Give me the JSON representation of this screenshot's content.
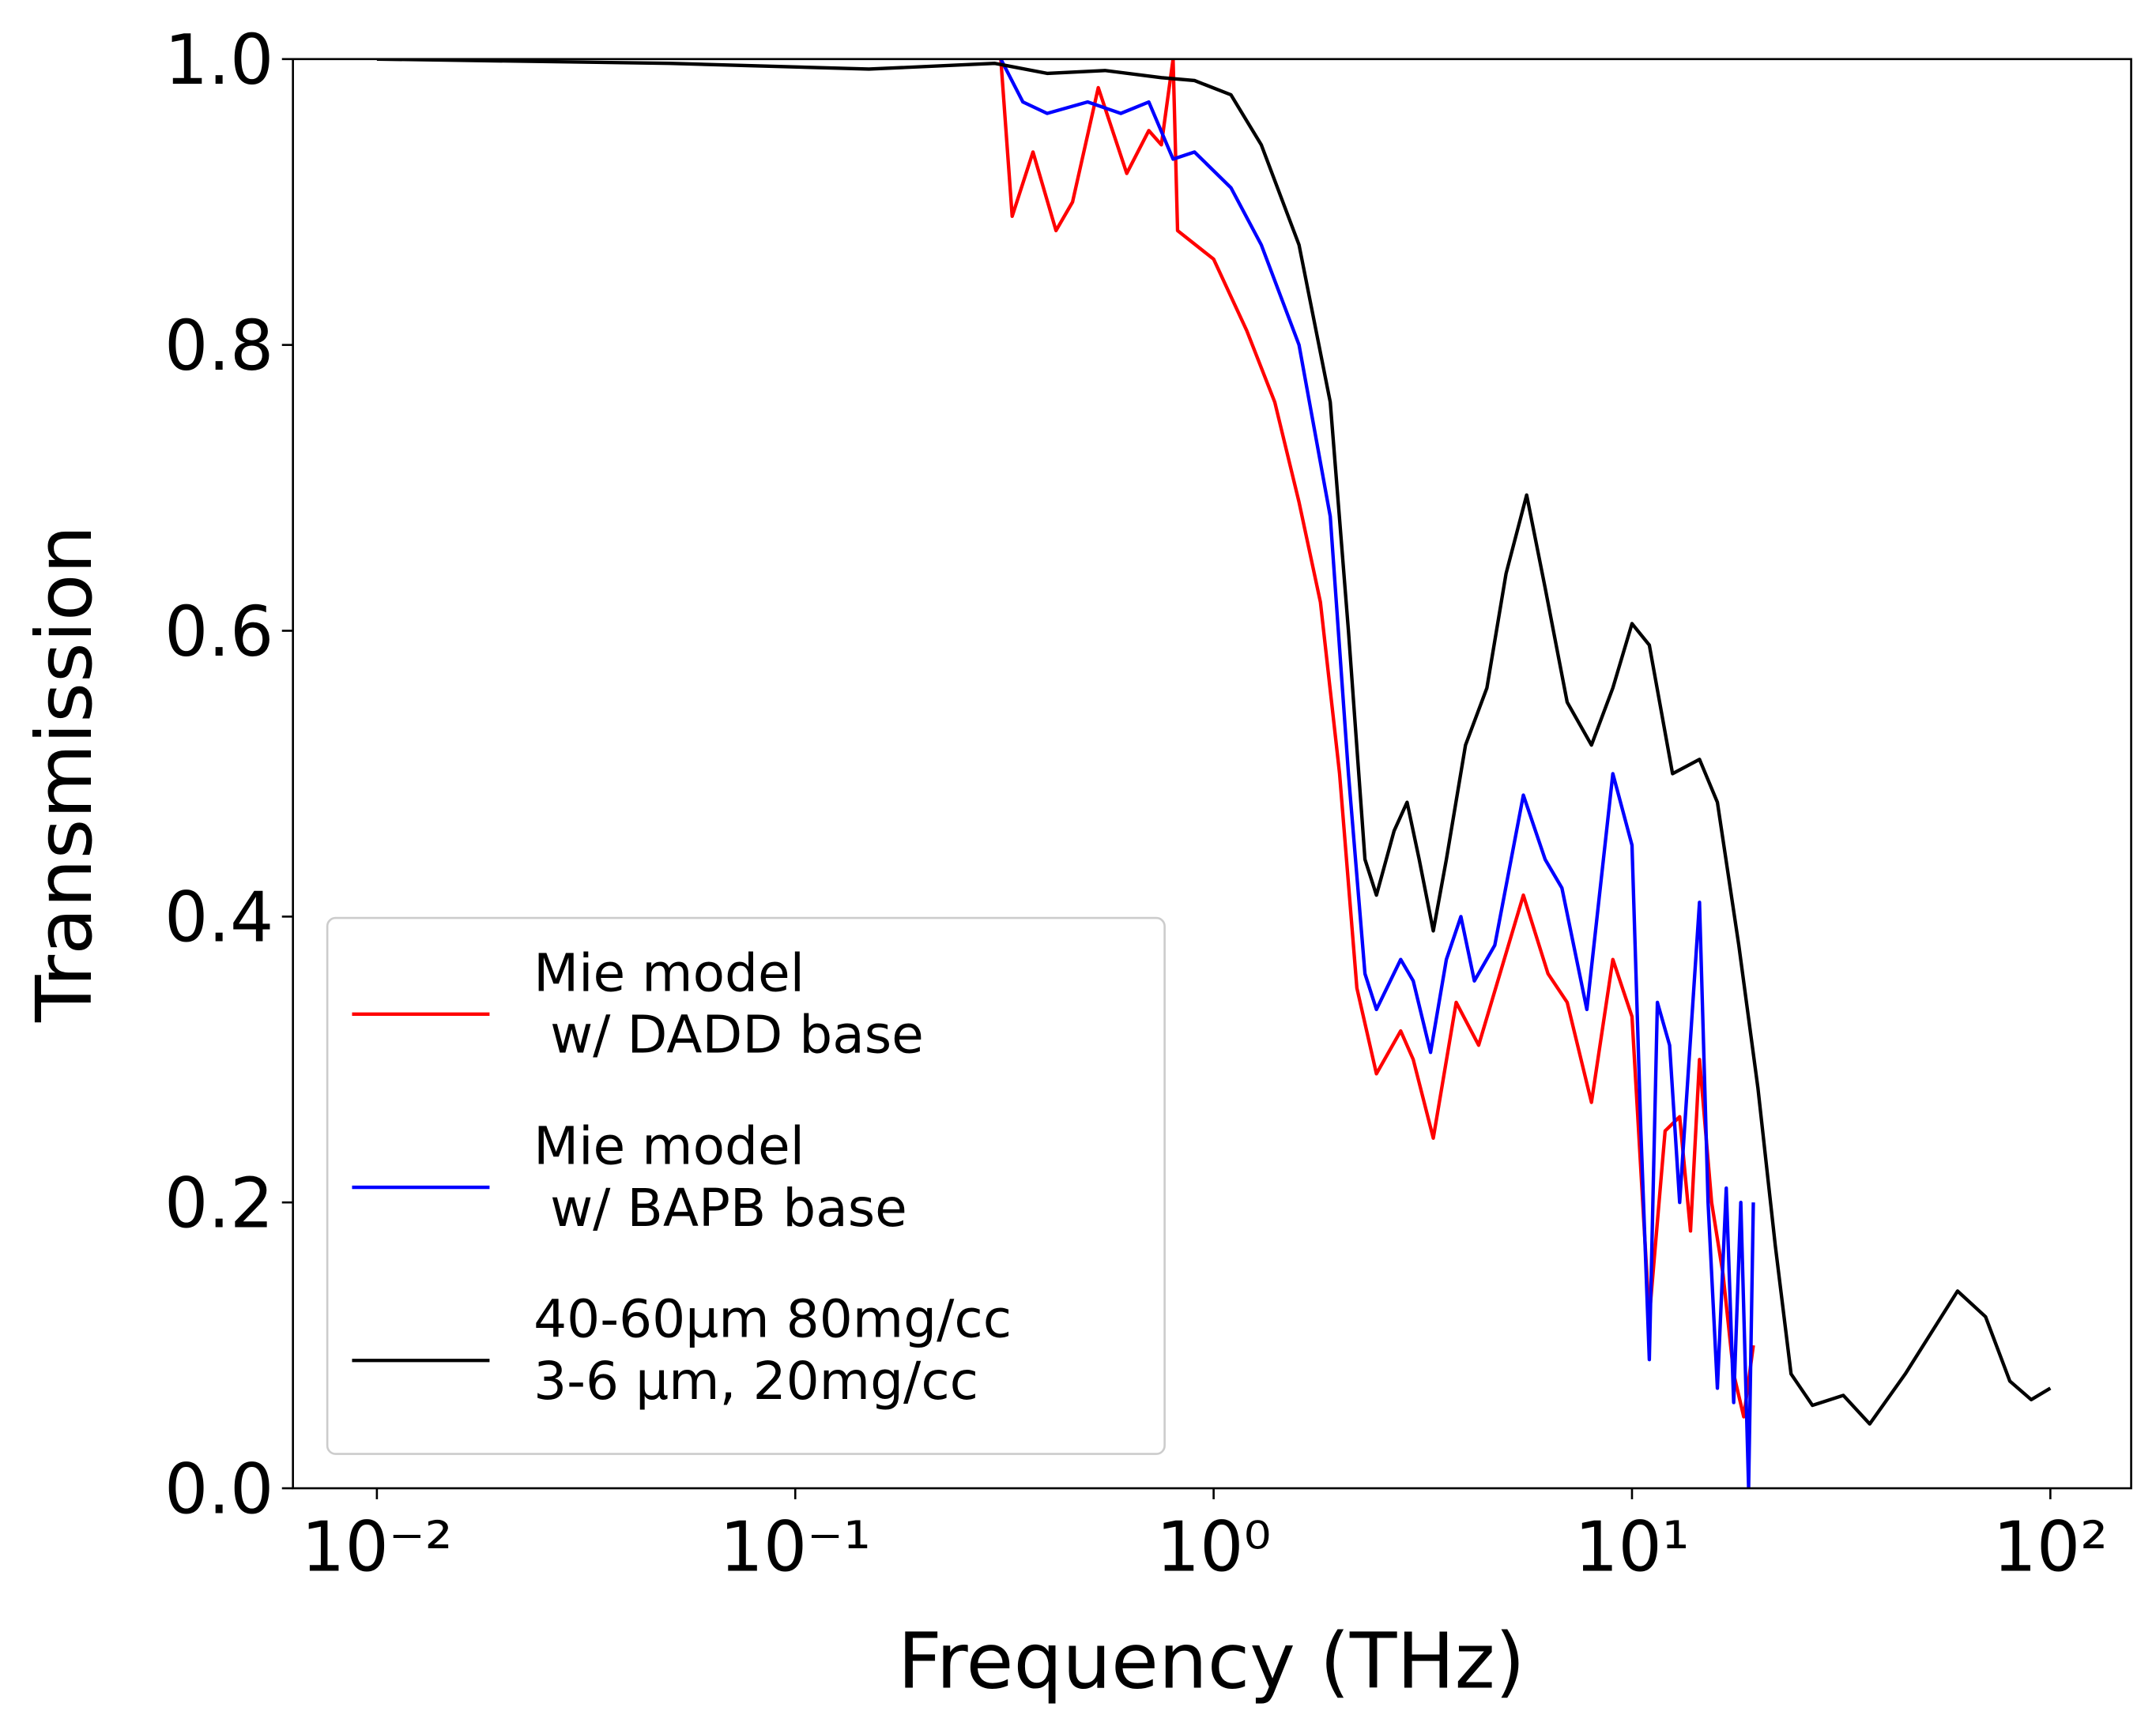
{
  "chart_data": {
    "type": "line",
    "xlabel": "Frequency (THz)",
    "ylabel": "Transmission",
    "xscale": "log",
    "xlim": [
      0.0063,
      156
    ],
    "ylim": [
      0,
      1
    ],
    "xticks": [
      {
        "value": 0.01,
        "label": "10⁻²"
      },
      {
        "value": 0.1,
        "label": "10⁻¹"
      },
      {
        "value": 1,
        "label": "10⁰"
      },
      {
        "value": 10,
        "label": "10¹"
      },
      {
        "value": 100,
        "label": "10²"
      }
    ],
    "yticks": [
      {
        "value": 0,
        "label": "0.0"
      },
      {
        "value": 0.2,
        "label": "0.2"
      },
      {
        "value": 0.4,
        "label": "0.4"
      },
      {
        "value": 0.6,
        "label": "0.6"
      },
      {
        "value": 0.8,
        "label": "0.8"
      },
      {
        "value": 1,
        "label": "1.0"
      }
    ],
    "legend": "lower left",
    "series": [
      {
        "name": "Mie model\n w/ DADD base",
        "color": "#ff0000",
        "x": [
          0.31,
          0.33,
          0.37,
          0.42,
          0.46,
          0.53,
          0.62,
          0.7,
          0.75,
          0.8,
          0.82,
          1.0,
          1.2,
          1.4,
          1.6,
          1.8,
          2.0,
          2.2,
          2.45,
          2.8,
          3.0,
          3.35,
          3.8,
          4.3,
          5.5,
          6.3,
          7.0,
          8.0,
          9.0,
          10.0,
          11,
          12,
          13,
          13.8,
          14.5,
          15.5,
          16.5,
          17.5,
          18.5,
          19.5
        ],
        "values": [
          1.0,
          0.89,
          0.935,
          0.88,
          0.9,
          0.98,
          0.92,
          0.95,
          0.94,
          1.0,
          0.88,
          0.86,
          0.81,
          0.76,
          0.69,
          0.62,
          0.5,
          0.35,
          0.29,
          0.32,
          0.3,
          0.245,
          0.34,
          0.31,
          0.415,
          0.36,
          0.34,
          0.27,
          0.37,
          0.33,
          0.12,
          0.25,
          0.26,
          0.18,
          0.3,
          0.2,
          0.15,
          0.08,
          0.05,
          0.1
        ]
      },
      {
        "name": "Mie model\n w/ BAPB base",
        "color": "#0000ff",
        "x": [
          0.31,
          0.35,
          0.4,
          0.5,
          0.6,
          0.7,
          0.8,
          0.9,
          1.1,
          1.3,
          1.6,
          1.9,
          2.1,
          2.3,
          2.45,
          2.8,
          3.0,
          3.3,
          3.6,
          3.9,
          4.2,
          4.7,
          5.5,
          6.2,
          6.8,
          7.8,
          9.0,
          10.0,
          10.5,
          11,
          11.5,
          12.3,
          13,
          14.5,
          15.2,
          16,
          16.8,
          17.5,
          18.2,
          19,
          19.5
        ],
        "values": [
          1.0,
          0.97,
          0.962,
          0.97,
          0.962,
          0.97,
          0.93,
          0.935,
          0.91,
          0.87,
          0.8,
          0.68,
          0.5,
          0.36,
          0.335,
          0.37,
          0.355,
          0.305,
          0.37,
          0.4,
          0.355,
          0.38,
          0.485,
          0.44,
          0.42,
          0.335,
          0.5,
          0.45,
          0.25,
          0.09,
          0.34,
          0.31,
          0.2,
          0.41,
          0.2,
          0.07,
          0.21,
          0.06,
          0.2,
          0.0,
          0.2
        ]
      },
      {
        "name": "40-60μm 80mg/cc\n3-6 μm, 20mg/cc",
        "color": "#000000",
        "x": [
          0.01,
          0.05,
          0.15,
          0.3,
          0.4,
          0.55,
          0.75,
          0.9,
          1.1,
          1.3,
          1.6,
          1.9,
          2.1,
          2.3,
          2.45,
          2.7,
          2.9,
          3.1,
          3.35,
          3.6,
          4.0,
          4.5,
          5.0,
          5.6,
          6.2,
          7.0,
          8.0,
          9.0,
          10.0,
          11,
          12.5,
          14.5,
          16,
          18,
          20,
          22,
          24,
          27,
          32,
          37,
          45,
          60,
          70,
          80,
          90,
          100
        ],
        "values": [
          1.0,
          0.997,
          0.993,
          0.997,
          0.99,
          0.992,
          0.987,
          0.985,
          0.975,
          0.94,
          0.87,
          0.76,
          0.6,
          0.44,
          0.415,
          0.46,
          0.48,
          0.44,
          0.39,
          0.44,
          0.52,
          0.56,
          0.64,
          0.695,
          0.63,
          0.55,
          0.52,
          0.56,
          0.605,
          0.59,
          0.5,
          0.51,
          0.48,
          0.38,
          0.28,
          0.17,
          0.08,
          0.058,
          0.065,
          0.045,
          0.08,
          0.138,
          0.12,
          0.075,
          0.062,
          0.07
        ]
      }
    ]
  }
}
